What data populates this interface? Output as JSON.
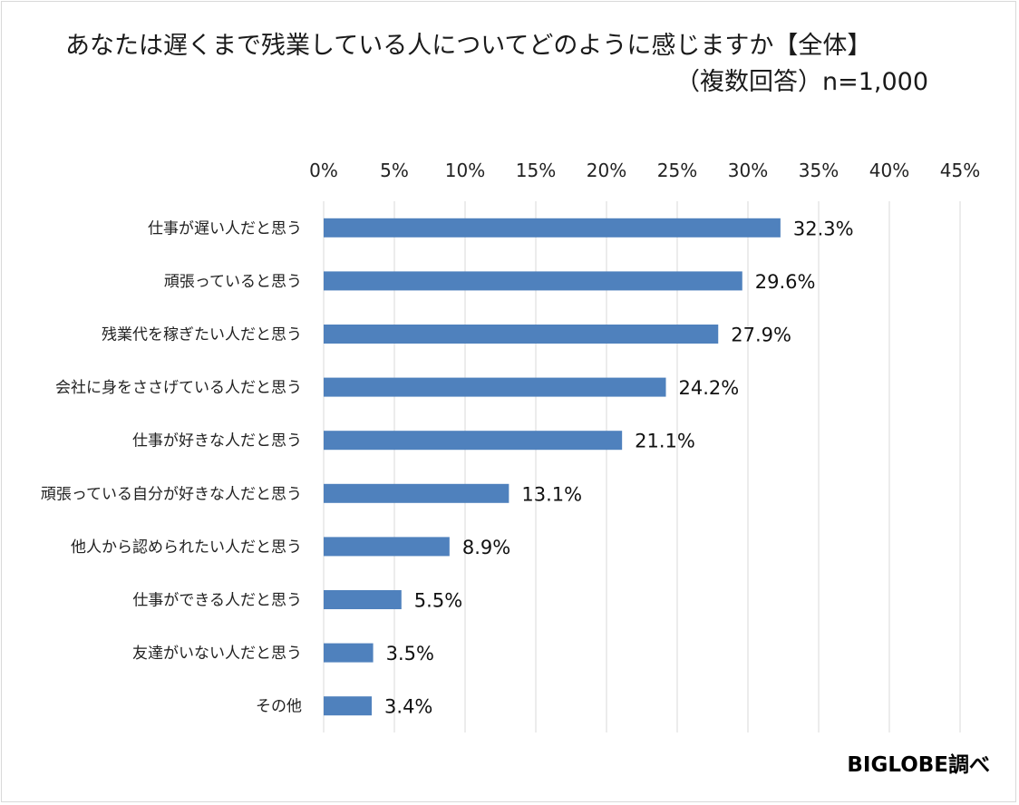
{
  "title": {
    "line1": "あなたは遅くまで残業している人についてどのように感じますか【全体】",
    "line2": "（複数回答）n=1,000"
  },
  "source_label": "BIGLOBE調べ",
  "colors": {
    "bar": "#4f81bd",
    "grid": "#d9d9d9"
  },
  "chart_data": {
    "type": "bar",
    "orientation": "horizontal",
    "title": "あなたは遅くまで残業している人についてどのように感じますか【全体】（複数回答）n=1,000",
    "categories": [
      "仕事が遅い人だと思う",
      "頑張っていると思う",
      "残業代を稼ぎたい人だと思う",
      "会社に身をささげている人だと思う",
      "仕事が好きな人だと思う",
      "頑張っている自分が好きな人だと思う",
      "他人から認められたい人だと思う",
      "仕事ができる人だと思う",
      "友達がいない人だと思う",
      "その他"
    ],
    "values": [
      32.3,
      29.6,
      27.9,
      24.2,
      21.1,
      13.1,
      8.9,
      5.5,
      3.5,
      3.4
    ],
    "data_labels": [
      "32.3%",
      "29.6%",
      "27.9%",
      "24.2%",
      "21.1%",
      "13.1%",
      "8.9%",
      "5.5%",
      "3.5%",
      "3.4%"
    ],
    "xlim": [
      0,
      45
    ],
    "x_ticks": [
      0,
      5,
      10,
      15,
      20,
      25,
      30,
      35,
      40,
      45
    ],
    "x_tick_labels": [
      "0%",
      "5%",
      "10%",
      "15%",
      "20%",
      "25%",
      "30%",
      "35%",
      "40%",
      "45%"
    ],
    "axis_position": "top",
    "grid": true,
    "legend": false
  }
}
